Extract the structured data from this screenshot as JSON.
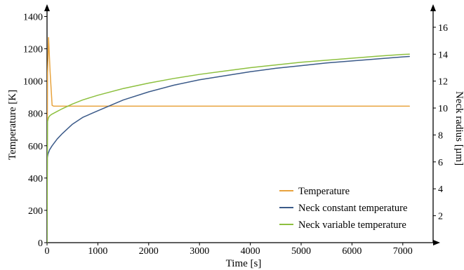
{
  "chart_data": {
    "type": "line",
    "xlabel": "Time [s]",
    "ylabel": "Temperature [K]",
    "y2label": "Neck radius [µm]",
    "xlim": [
      0,
      7500
    ],
    "ylim": [
      0,
      1450
    ],
    "y2lim": [
      0,
      17.4
    ],
    "x_ticks": [
      0,
      1000,
      2000,
      3000,
      4000,
      5000,
      6000,
      7000
    ],
    "y_ticks": [
      0,
      200,
      400,
      600,
      800,
      1000,
      1200,
      1400
    ],
    "y2_ticks": [
      2,
      4,
      6,
      8,
      10,
      12,
      14,
      16
    ],
    "legend_position": "bottom-right",
    "grid": false,
    "series": [
      {
        "name": "Temperature",
        "axis": "left",
        "color": "#e8a33d",
        "x": [
          0,
          10,
          30,
          60,
          100,
          130,
          500,
          1000,
          2000,
          3000,
          4000,
          5000,
          6000,
          7000,
          7130
        ],
        "y": [
          300,
          1050,
          1270,
          1060,
          850,
          845,
          845,
          845,
          845,
          845,
          845,
          845,
          845,
          845,
          845
        ]
      },
      {
        "name": "Neck constant temperature",
        "axis": "right",
        "color": "#3b5a89",
        "x": [
          0,
          5,
          20,
          50,
          100,
          200,
          300,
          500,
          700,
          1000,
          1500,
          2000,
          2500,
          3000,
          3500,
          4000,
          4500,
          5000,
          5500,
          6000,
          6500,
          7000,
          7130
        ],
        "y": [
          0,
          6.3,
          6.6,
          6.9,
          7.2,
          7.7,
          8.1,
          8.8,
          9.3,
          9.8,
          10.6,
          11.2,
          11.7,
          12.1,
          12.4,
          12.7,
          12.95,
          13.15,
          13.35,
          13.5,
          13.65,
          13.8,
          13.83
        ]
      },
      {
        "name": "Neck variable temperature",
        "axis": "right",
        "color": "#8dc03f",
        "x": [
          0,
          10,
          30,
          60,
          100,
          200,
          300,
          500,
          700,
          1000,
          1500,
          2000,
          2500,
          3000,
          3500,
          4000,
          4500,
          5000,
          5500,
          6000,
          6500,
          7000,
          7130
        ],
        "y": [
          0,
          9.0,
          9.3,
          9.45,
          9.55,
          9.75,
          9.95,
          10.3,
          10.6,
          10.95,
          11.45,
          11.85,
          12.2,
          12.5,
          12.75,
          13.0,
          13.2,
          13.4,
          13.55,
          13.7,
          13.85,
          13.98,
          14.0
        ]
      }
    ]
  }
}
